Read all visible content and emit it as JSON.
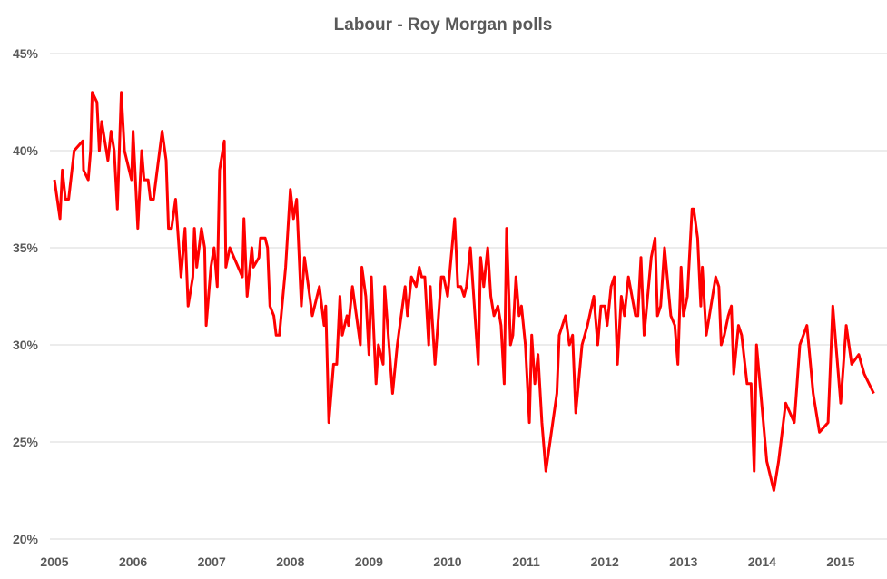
{
  "chart_data": {
    "type": "line",
    "title": "Labour - Roy Morgan polls",
    "xlabel": "",
    "ylabel": "",
    "xlim": [
      2005,
      2015.42
    ],
    "ylim": [
      20,
      45
    ],
    "grid": true,
    "legend": "none",
    "x_ticks": [
      2005,
      2006,
      2007,
      2008,
      2009,
      2010,
      2011,
      2012,
      2013,
      2014,
      2015
    ],
    "x_tick_labels": [
      "2005",
      "2006",
      "2007",
      "2008",
      "2009",
      "2010",
      "2011",
      "2012",
      "2013",
      "2014",
      "2015"
    ],
    "y_ticks": [
      20,
      25,
      30,
      35,
      40,
      45
    ],
    "y_tick_labels": [
      "20%",
      "25%",
      "30%",
      "35%",
      "40%",
      "45%"
    ],
    "series": [
      {
        "name": "Labour",
        "color": "#ff0000",
        "points": [
          [
            2005.0,
            38.5
          ],
          [
            2005.07,
            36.5
          ],
          [
            2005.1,
            39
          ],
          [
            2005.14,
            37.5
          ],
          [
            2005.18,
            37.5
          ],
          [
            2005.25,
            40
          ],
          [
            2005.36,
            40.5
          ],
          [
            2005.37,
            39
          ],
          [
            2005.43,
            38.5
          ],
          [
            2005.46,
            40
          ],
          [
            2005.48,
            43
          ],
          [
            2005.54,
            42.5
          ],
          [
            2005.57,
            40
          ],
          [
            2005.6,
            41.5
          ],
          [
            2005.68,
            39.5
          ],
          [
            2005.72,
            41
          ],
          [
            2005.76,
            40
          ],
          [
            2005.8,
            37
          ],
          [
            2005.85,
            43
          ],
          [
            2005.89,
            40
          ],
          [
            2005.98,
            38.5
          ],
          [
            2006.0,
            41
          ],
          [
            2006.06,
            36
          ],
          [
            2006.11,
            40
          ],
          [
            2006.14,
            38.5
          ],
          [
            2006.19,
            38.5
          ],
          [
            2006.22,
            37.5
          ],
          [
            2006.26,
            37.5
          ],
          [
            2006.37,
            41
          ],
          [
            2006.42,
            39.5
          ],
          [
            2006.45,
            36
          ],
          [
            2006.49,
            36
          ],
          [
            2006.54,
            37.5
          ],
          [
            2006.61,
            33.5
          ],
          [
            2006.66,
            36
          ],
          [
            2006.7,
            32
          ],
          [
            2006.76,
            33.5
          ],
          [
            2006.78,
            36
          ],
          [
            2006.81,
            34
          ],
          [
            2006.87,
            36
          ],
          [
            2006.91,
            35
          ],
          [
            2006.93,
            31
          ],
          [
            2006.99,
            34
          ],
          [
            2007.03,
            35
          ],
          [
            2007.07,
            33
          ],
          [
            2007.1,
            39
          ],
          [
            2007.16,
            40.5
          ],
          [
            2007.18,
            34
          ],
          [
            2007.23,
            35
          ],
          [
            2007.39,
            33.5
          ],
          [
            2007.41,
            36.5
          ],
          [
            2007.45,
            32.5
          ],
          [
            2007.51,
            35
          ],
          [
            2007.53,
            34
          ],
          [
            2007.6,
            34.5
          ],
          [
            2007.62,
            35.5
          ],
          [
            2007.68,
            35.5
          ],
          [
            2007.71,
            35
          ],
          [
            2007.74,
            32
          ],
          [
            2007.79,
            31.5
          ],
          [
            2007.82,
            30.5
          ],
          [
            2007.86,
            30.5
          ],
          [
            2007.94,
            34
          ],
          [
            2008.0,
            38
          ],
          [
            2008.04,
            36.5
          ],
          [
            2008.08,
            37.5
          ],
          [
            2008.14,
            32
          ],
          [
            2008.18,
            34.5
          ],
          [
            2008.28,
            31.5
          ],
          [
            2008.37,
            33
          ],
          [
            2008.43,
            31
          ],
          [
            2008.45,
            32
          ],
          [
            2008.49,
            26
          ],
          [
            2008.55,
            29
          ],
          [
            2008.59,
            29
          ],
          [
            2008.63,
            32.5
          ],
          [
            2008.66,
            30.5
          ],
          [
            2008.72,
            31.5
          ],
          [
            2008.74,
            31
          ],
          [
            2008.79,
            33
          ],
          [
            2008.89,
            30
          ],
          [
            2008.91,
            34
          ],
          [
            2008.96,
            32.5
          ],
          [
            2009.0,
            29.5
          ],
          [
            2009.03,
            33.5
          ],
          [
            2009.09,
            28
          ],
          [
            2009.12,
            30
          ],
          [
            2009.18,
            29
          ],
          [
            2009.2,
            33
          ],
          [
            2009.3,
            27.5
          ],
          [
            2009.36,
            30
          ],
          [
            2009.46,
            33
          ],
          [
            2009.49,
            31.5
          ],
          [
            2009.54,
            33.5
          ],
          [
            2009.6,
            33
          ],
          [
            2009.64,
            34
          ],
          [
            2009.67,
            33.5
          ],
          [
            2009.71,
            33.5
          ],
          [
            2009.76,
            30
          ],
          [
            2009.78,
            33
          ],
          [
            2009.84,
            29
          ],
          [
            2009.92,
            33.5
          ],
          [
            2009.95,
            33.5
          ],
          [
            2010.0,
            32.5
          ],
          [
            2010.09,
            36.5
          ],
          [
            2010.13,
            33
          ],
          [
            2010.17,
            33
          ],
          [
            2010.21,
            32.5
          ],
          [
            2010.24,
            33
          ],
          [
            2010.29,
            35
          ],
          [
            2010.39,
            29
          ],
          [
            2010.42,
            34.5
          ],
          [
            2010.46,
            33
          ],
          [
            2010.51,
            35
          ],
          [
            2010.55,
            32.5
          ],
          [
            2010.59,
            31.5
          ],
          [
            2010.64,
            32
          ],
          [
            2010.68,
            31
          ],
          [
            2010.72,
            28
          ],
          [
            2010.75,
            36
          ],
          [
            2010.8,
            30
          ],
          [
            2010.83,
            30.5
          ],
          [
            2010.87,
            33.5
          ],
          [
            2010.91,
            31.5
          ],
          [
            2010.94,
            32
          ],
          [
            2010.99,
            30
          ],
          [
            2011.04,
            26
          ],
          [
            2011.07,
            30.5
          ],
          [
            2011.11,
            28
          ],
          [
            2011.15,
            29.5
          ],
          [
            2011.2,
            26
          ],
          [
            2011.25,
            23.5
          ],
          [
            2011.39,
            27.5
          ],
          [
            2011.42,
            30.5
          ],
          [
            2011.5,
            31.5
          ],
          [
            2011.55,
            30
          ],
          [
            2011.59,
            30.5
          ],
          [
            2011.63,
            26.5
          ],
          [
            2011.71,
            30
          ],
          [
            2011.78,
            31
          ],
          [
            2011.86,
            32.5
          ],
          [
            2011.91,
            30
          ],
          [
            2011.95,
            32
          ],
          [
            2012.0,
            32
          ],
          [
            2012.03,
            31
          ],
          [
            2012.08,
            33
          ],
          [
            2012.12,
            33.5
          ],
          [
            2012.16,
            29
          ],
          [
            2012.21,
            32.5
          ],
          [
            2012.25,
            31.5
          ],
          [
            2012.3,
            33.5
          ],
          [
            2012.39,
            31.5
          ],
          [
            2012.42,
            31.5
          ],
          [
            2012.46,
            34.5
          ],
          [
            2012.5,
            30.5
          ],
          [
            2012.59,
            34.5
          ],
          [
            2012.64,
            35.5
          ],
          [
            2012.67,
            31.5
          ],
          [
            2012.71,
            32
          ],
          [
            2012.76,
            35
          ],
          [
            2012.84,
            31.5
          ],
          [
            2012.89,
            31
          ],
          [
            2012.93,
            29
          ],
          [
            2012.97,
            34
          ],
          [
            2013.0,
            31.5
          ],
          [
            2013.05,
            32.5
          ],
          [
            2013.11,
            37
          ],
          [
            2013.13,
            37
          ],
          [
            2013.18,
            35.5
          ],
          [
            2013.22,
            32
          ],
          [
            2013.24,
            34
          ],
          [
            2013.29,
            30.5
          ],
          [
            2013.41,
            33.5
          ],
          [
            2013.45,
            33
          ],
          [
            2013.48,
            30
          ],
          [
            2013.52,
            30.5
          ],
          [
            2013.57,
            31.5
          ],
          [
            2013.61,
            32
          ],
          [
            2013.64,
            28.5
          ],
          [
            2013.7,
            31
          ],
          [
            2013.74,
            30.5
          ],
          [
            2013.81,
            28
          ],
          [
            2013.86,
            28
          ],
          [
            2013.9,
            23.5
          ],
          [
            2013.93,
            30
          ],
          [
            2014.06,
            24
          ],
          [
            2014.15,
            22.5
          ],
          [
            2014.21,
            24
          ],
          [
            2014.3,
            27
          ],
          [
            2014.41,
            26
          ],
          [
            2014.48,
            30
          ],
          [
            2014.57,
            31
          ],
          [
            2014.65,
            27.5
          ],
          [
            2014.73,
            25.5
          ],
          [
            2014.84,
            26
          ],
          [
            2014.9,
            32
          ],
          [
            2015.0,
            27
          ],
          [
            2015.07,
            31
          ],
          [
            2015.14,
            29
          ],
          [
            2015.23,
            29.5
          ],
          [
            2015.3,
            28.5
          ],
          [
            2015.42,
            27.5
          ]
        ]
      }
    ]
  }
}
